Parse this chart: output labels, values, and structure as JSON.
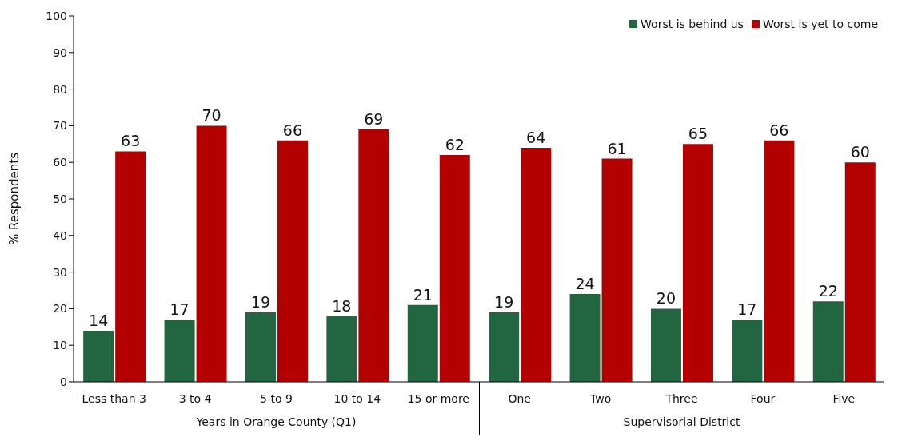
{
  "chart_data": {
    "type": "bar",
    "ylabel": "% Respondents",
    "categories": [
      "Less than 3",
      "3 to 4",
      "5 to 9",
      "10 to 14",
      "15 or more",
      "One",
      "Two",
      "Three",
      "Four",
      "Five"
    ],
    "series": [
      {
        "name": "Worst is behind us",
        "color": "#226641",
        "values": [
          14,
          17,
          19,
          18,
          21,
          19,
          24,
          20,
          17,
          22
        ]
      },
      {
        "name": "Worst is yet to come",
        "color": "#b30000",
        "values": [
          63,
          70,
          66,
          69,
          62,
          64,
          61,
          65,
          66,
          60
        ]
      }
    ],
    "ylim": [
      0,
      100
    ],
    "yticks": [
      0,
      10,
      20,
      30,
      40,
      50,
      60,
      70,
      80,
      90,
      100
    ],
    "legend": "top right",
    "data_labels": true,
    "annotations": [
      "Years in Orange County (Q1)",
      "Supervisorial District"
    ]
  }
}
